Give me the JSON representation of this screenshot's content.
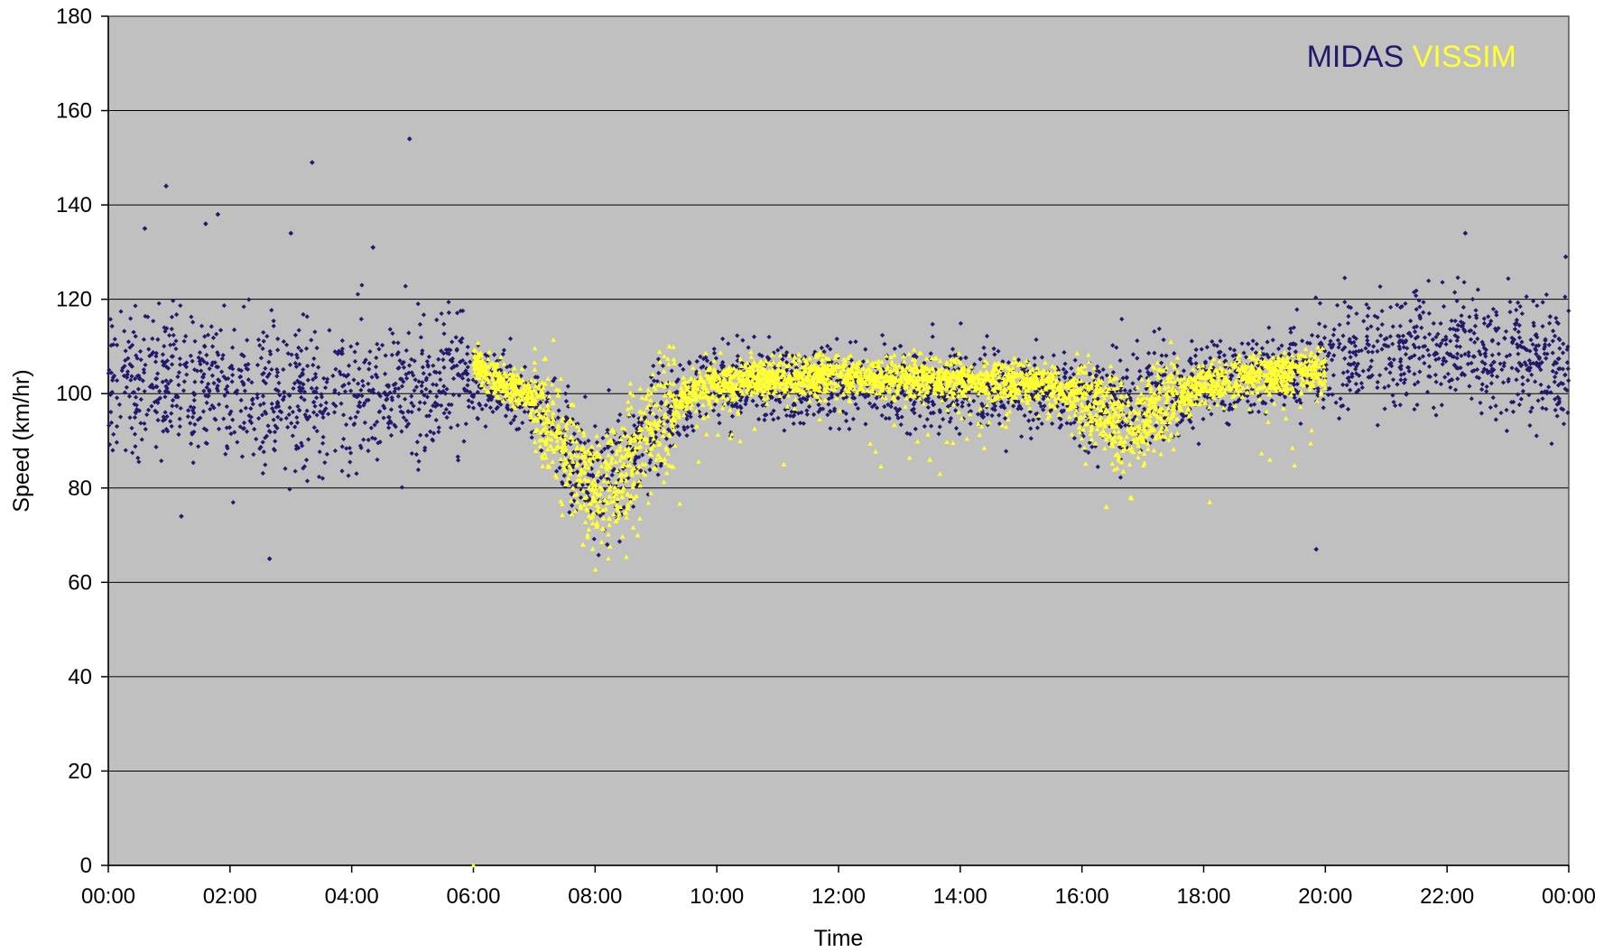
{
  "chart_data": {
    "type": "scatter",
    "title": "",
    "xlabel": "Time",
    "ylabel": "Speed (km/hr)",
    "x_unit": "hours",
    "xlim": [
      0,
      24
    ],
    "ylim": [
      0,
      180
    ],
    "x_ticks": [
      0,
      2,
      4,
      6,
      8,
      10,
      12,
      14,
      16,
      18,
      20,
      22,
      24
    ],
    "x_tick_labels": [
      "00:00",
      "02:00",
      "04:00",
      "06:00",
      "08:00",
      "10:00",
      "12:00",
      "14:00",
      "16:00",
      "18:00",
      "20:00",
      "22:00",
      "00:00"
    ],
    "y_ticks": [
      0,
      20,
      40,
      60,
      80,
      100,
      120,
      140,
      160,
      180
    ],
    "y_tick_labels": [
      "0",
      "20",
      "40",
      "60",
      "80",
      "100",
      "120",
      "140",
      "160",
      "180"
    ],
    "plot_background": "#c0c0c0",
    "gridlines": "horizontal",
    "legend_position": "top-right",
    "legend": [
      "MIDAS",
      "VISSIM"
    ],
    "series": [
      {
        "name": "MIDAS",
        "marker": "diamond",
        "color": "#1f1a6b",
        "trend": [
          [
            0.0,
            104
          ],
          [
            1.0,
            103
          ],
          [
            2.0,
            101
          ],
          [
            3.0,
            100
          ],
          [
            4.0,
            98
          ],
          [
            5.0,
            100
          ],
          [
            5.75,
            103
          ],
          [
            6.25,
            103
          ],
          [
            6.75,
            100
          ],
          [
            7.25,
            95
          ],
          [
            7.75,
            85
          ],
          [
            8.25,
            82
          ],
          [
            8.75,
            90
          ],
          [
            9.25,
            97
          ],
          [
            10.0,
            101
          ],
          [
            12.0,
            102
          ],
          [
            14.0,
            101
          ],
          [
            15.5,
            100
          ],
          [
            16.5,
            98
          ],
          [
            17.5,
            101
          ],
          [
            18.5,
            103
          ],
          [
            19.5,
            105
          ],
          [
            20.0,
            107
          ],
          [
            21.0,
            109
          ],
          [
            22.0,
            110
          ],
          [
            23.0,
            108
          ],
          [
            24.0,
            107
          ]
        ],
        "outliers": [
          [
            0.95,
            144
          ],
          [
            1.6,
            136
          ],
          [
            1.8,
            138
          ],
          [
            2.65,
            65
          ],
          [
            3.35,
            149
          ],
          [
            4.95,
            154
          ],
          [
            4.35,
            131
          ],
          [
            1.2,
            74
          ],
          [
            8.2,
            68
          ],
          [
            19.85,
            67
          ],
          [
            22.3,
            134
          ],
          [
            23.95,
            129
          ],
          [
            3.0,
            134
          ],
          [
            0.6,
            135
          ]
        ]
      },
      {
        "name": "VISSIM",
        "marker": "triangle",
        "color": "#ffff33",
        "trend": [
          [
            6.0,
            107
          ],
          [
            6.4,
            103
          ],
          [
            6.9,
            100
          ],
          [
            7.3,
            93
          ],
          [
            7.7,
            83
          ],
          [
            8.1,
            80
          ],
          [
            8.5,
            84
          ],
          [
            9.0,
            93
          ],
          [
            9.5,
            100
          ],
          [
            10.0,
            103
          ],
          [
            12.0,
            104
          ],
          [
            14.0,
            103
          ],
          [
            15.5,
            102
          ],
          [
            16.3,
            97
          ],
          [
            16.8,
            92
          ],
          [
            17.3,
            98
          ],
          [
            18.0,
            102
          ],
          [
            19.0,
            104
          ],
          [
            20.0,
            105
          ]
        ],
        "outliers": [
          [
            6.0,
            0
          ],
          [
            7.8,
            68
          ],
          [
            8.7,
            70
          ],
          [
            16.8,
            78
          ],
          [
            18.1,
            77
          ],
          [
            16.4,
            76
          ],
          [
            11.1,
            85
          ],
          [
            13.5,
            86
          ]
        ]
      }
    ]
  }
}
